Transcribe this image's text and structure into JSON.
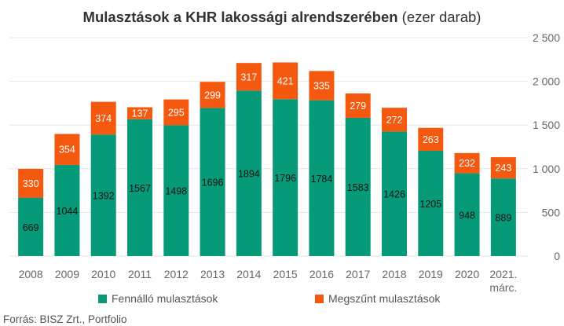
{
  "title": {
    "bold": "Mulasztások a KHR lakossági alrendszerében",
    "normal": " (ezer darab)"
  },
  "colors": {
    "fennallo": "#069a78",
    "megszunt": "#f5590f",
    "grid": "#e6e6e6",
    "axis_text": "#666666"
  },
  "source": "Forrás: BISZ Zrt., Portfolio",
  "chart_data": {
    "type": "bar",
    "stacked": true,
    "title": "Mulasztások a KHR lakossági alrendszerében (ezer darab)",
    "categories": [
      "2008",
      "2009",
      "2010",
      "2011",
      "2012",
      "2013",
      "2014",
      "2015",
      "2016",
      "2017",
      "2018",
      "2019",
      "2020",
      "2021. márc."
    ],
    "series": [
      {
        "name": "Fennálló mulasztások",
        "color": "#069a78",
        "values": [
          669,
          1044,
          1392,
          1567,
          1498,
          1696,
          1894,
          1796,
          1784,
          1583,
          1426,
          1205,
          948,
          889
        ]
      },
      {
        "name": "Megszűnt mulasztások",
        "color": "#f5590f",
        "values": [
          330,
          354,
          374,
          137,
          295,
          299,
          317,
          421,
          335,
          279,
          272,
          263,
          232,
          243
        ]
      }
    ],
    "yaxis_position": "right",
    "ylim": [
      0,
      2500
    ],
    "yticks": [
      0,
      500,
      1000,
      1500,
      2000,
      2500
    ],
    "ytick_labels": [
      "0",
      "500",
      "1 000",
      "1 500",
      "2 000",
      "2 500"
    ],
    "grid": true,
    "legend_position": "bottom",
    "xlabel": "",
    "ylabel": ""
  }
}
